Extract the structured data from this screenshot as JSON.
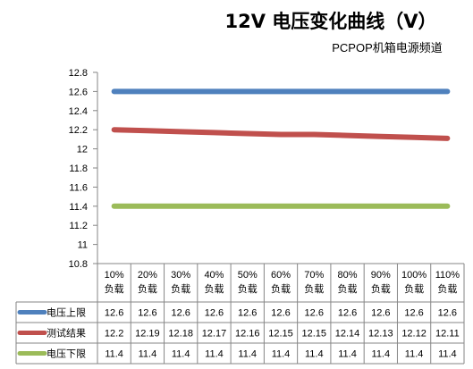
{
  "chart_data": {
    "type": "line",
    "title": "12V 电压变化曲线（V）",
    "subtitle": "PCPOP机箱电源频道",
    "categories": [
      "10%\n负载",
      "20%\n负载",
      "30%\n负载",
      "40%\n负载",
      "50%\n负载",
      "60%\n负载",
      "70%\n负载",
      "80%\n负载",
      "90%\n负载",
      "100%\n负载",
      "110%\n负载"
    ],
    "y_ticks": [
      "12.8",
      "12.6",
      "12.4",
      "12.2",
      "12",
      "11.8",
      "11.6",
      "11.4",
      "11.2",
      "11",
      "10.8"
    ],
    "ylim": [
      10.8,
      12.8
    ],
    "grid": false,
    "legend_placement": "data-table",
    "series": [
      {
        "name": "电压上限",
        "color": "#4f81bd",
        "values": [
          12.6,
          12.6,
          12.6,
          12.6,
          12.6,
          12.6,
          12.6,
          12.6,
          12.6,
          12.6,
          12.6
        ],
        "labels": [
          "12.6",
          "12.6",
          "12.6",
          "12.6",
          "12.6",
          "12.6",
          "12.6",
          "12.6",
          "12.6",
          "12.6",
          "12.6"
        ]
      },
      {
        "name": "测试结果",
        "color": "#c0504d",
        "values": [
          12.2,
          12.19,
          12.18,
          12.17,
          12.16,
          12.15,
          12.15,
          12.14,
          12.13,
          12.12,
          12.11
        ],
        "labels": [
          "12.2",
          "12.19",
          "12.18",
          "12.17",
          "12.16",
          "12.15",
          "12.15",
          "12.14",
          "12.13",
          "12.12",
          "12.11"
        ]
      },
      {
        "name": "电压下限",
        "color": "#9bbb59",
        "values": [
          11.4,
          11.4,
          11.4,
          11.4,
          11.4,
          11.4,
          11.4,
          11.4,
          11.4,
          11.4,
          11.4
        ],
        "labels": [
          "11.4",
          "11.4",
          "11.4",
          "11.4",
          "11.4",
          "11.4",
          "11.4",
          "11.4",
          "11.4",
          "11.4",
          "11.4"
        ]
      }
    ]
  }
}
